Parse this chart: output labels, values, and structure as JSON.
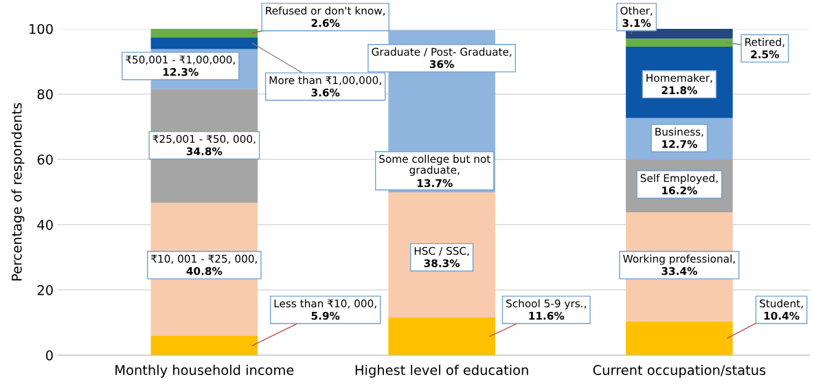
{
  "chart_data": {
    "type": "bar",
    "stacked": true,
    "ylabel": "Percentage of respondents",
    "categories": [
      "Monthly household income",
      "Highest level of education",
      "Current occupation/status"
    ],
    "series": [
      {
        "colors": [
          "#ffc000",
          "#ffc000",
          "#ffc000"
        ],
        "values": [
          5.9,
          11.6,
          10.4
        ],
        "value_labels": [
          "5.9%",
          "11.6%",
          "10.4%"
        ]
      },
      {
        "colors": [
          "#f8cbad",
          "#f8cbad",
          "#f8cbad"
        ],
        "values": [
          40.8,
          38.3,
          33.4
        ],
        "value_labels": [
          "40.8%",
          "38.3%",
          "33.4%"
        ]
      },
      {
        "colors": [
          "#a5a5a5",
          "#8fb4de",
          "#a5a5a5"
        ],
        "values": [
          34.8,
          13.7,
          16.2
        ],
        "value_labels": [
          "34.8%",
          "13.7%",
          "16.2%"
        ]
      },
      {
        "colors": [
          "#8fb4de",
          "#8fb4de",
          "#8fb4de"
        ],
        "values": [
          12.3,
          36,
          12.7
        ],
        "value_labels": [
          "12.3%",
          "36%",
          "12.7%"
        ]
      },
      {
        "colors": [
          "#0b56a6",
          null,
          "#0b56a6"
        ],
        "values": [
          3.6,
          null,
          21.8
        ],
        "value_labels": [
          "3.6%",
          null,
          "21.8%"
        ]
      },
      {
        "colors": [
          "#6aaf45",
          null,
          "#6aaf45"
        ],
        "values": [
          2.6,
          null,
          2.5
        ],
        "value_labels": [
          "2.6%",
          null,
          "2.5%"
        ]
      },
      {
        "colors": [
          null,
          null,
          "#24477f"
        ],
        "values": [
          null,
          null,
          3.1
        ],
        "value_labels": [
          null,
          null,
          "3.1%"
        ]
      }
    ],
    "annotations": [
      "Less than ₹10, 000,",
      "₹10, 001 - ₹25, 000,",
      "₹25,001 - ₹50, 000,",
      "₹50,001 - ₹1,00,000,",
      "More than ₹1,00,000,",
      "Refused or don't know,",
      "School 5-9 yrs.,",
      "HSC / SSC,",
      "Some college but not\ngraduate,",
      "Graduate / Post- Graduate,",
      "Student,",
      "Working professional,",
      "Self Employed,",
      "Business,",
      "Homemaker,",
      "Retired,",
      "Other,"
    ],
    "ylim": [
      0,
      100
    ],
    "yticks": [
      0,
      20,
      40,
      60,
      80,
      100
    ],
    "grid": "y"
  }
}
